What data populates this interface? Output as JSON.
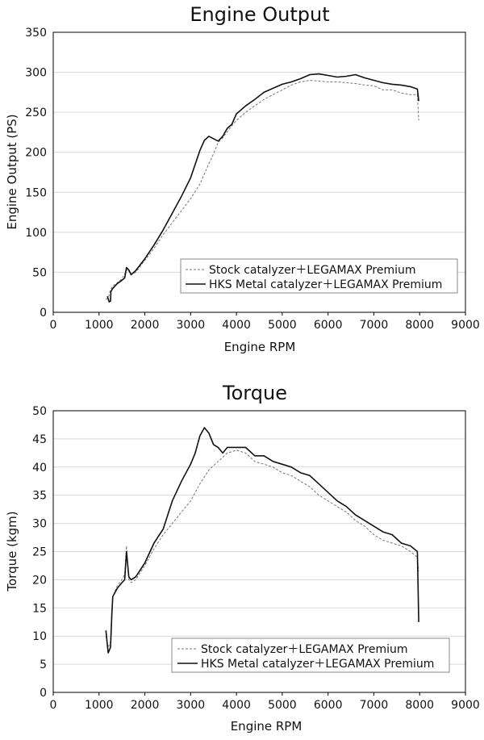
{
  "colors": {
    "line": "#111111",
    "dashed": "#777777",
    "grid": "#d9d9d9",
    "frame": "#000000"
  },
  "chart_data": [
    {
      "type": "line",
      "title": "Engine Output",
      "xlabel": "Engine RPM",
      "ylabel": "Engine Output (PS)",
      "xlim": [
        0,
        9000
      ],
      "ylim": [
        0,
        350
      ],
      "xticks": [
        0,
        1000,
        2000,
        3000,
        4000,
        5000,
        6000,
        7000,
        8000,
        9000
      ],
      "yticks": [
        0,
        50,
        100,
        150,
        200,
        250,
        300,
        350
      ],
      "grid": "horizontal",
      "legend_position": "bottom-right",
      "series": [
        {
          "name": "Stock catalyzer＋LEGAMAX Premium",
          "style": "dashed",
          "points": [
            [
              1150,
              16
            ],
            [
              1200,
              18
            ],
            [
              1250,
              28
            ],
            [
              1300,
              33
            ],
            [
              1400,
              37
            ],
            [
              1500,
              42
            ],
            [
              1580,
              50
            ],
            [
              1620,
              54
            ],
            [
              1700,
              47
            ],
            [
              1800,
              50
            ],
            [
              2000,
              65
            ],
            [
              2200,
              80
            ],
            [
              2400,
              97
            ],
            [
              2600,
              112
            ],
            [
              2800,
              127
            ],
            [
              3000,
              142
            ],
            [
              3200,
              160
            ],
            [
              3400,
              186
            ],
            [
              3500,
              198
            ],
            [
              3600,
              212
            ],
            [
              3700,
              218
            ],
            [
              3800,
              226
            ],
            [
              4000,
              240
            ],
            [
              4200,
              250
            ],
            [
              4400,
              258
            ],
            [
              4600,
              266
            ],
            [
              4800,
              272
            ],
            [
              5000,
              278
            ],
            [
              5200,
              284
            ],
            [
              5400,
              288
            ],
            [
              5600,
              290
            ],
            [
              5800,
              289
            ],
            [
              6000,
              288
            ],
            [
              6200,
              288
            ],
            [
              6400,
              287
            ],
            [
              6600,
              286
            ],
            [
              6800,
              284
            ],
            [
              7000,
              283
            ],
            [
              7200,
              278
            ],
            [
              7400,
              278
            ],
            [
              7600,
              274
            ],
            [
              7800,
              272
            ],
            [
              7950,
              272
            ],
            [
              7980,
              240
            ]
          ]
        },
        {
          "name": "HKS Metal catalyzer＋LEGAMAX Premium",
          "style": "solid",
          "points": [
            [
              1180,
              20
            ],
            [
              1200,
              17
            ],
            [
              1220,
              13
            ],
            [
              1250,
              14
            ],
            [
              1260,
              26
            ],
            [
              1300,
              30
            ],
            [
              1400,
              36
            ],
            [
              1500,
              40
            ],
            [
              1560,
              43
            ],
            [
              1600,
              56
            ],
            [
              1650,
              53
            ],
            [
              1700,
              47
            ],
            [
              1800,
              52
            ],
            [
              2000,
              67
            ],
            [
              2200,
              84
            ],
            [
              2400,
              103
            ],
            [
              2600,
              124
            ],
            [
              2800,
              145
            ],
            [
              3000,
              168
            ],
            [
              3100,
              185
            ],
            [
              3200,
              202
            ],
            [
              3300,
              215
            ],
            [
              3400,
              220
            ],
            [
              3500,
              217
            ],
            [
              3600,
              214
            ],
            [
              3700,
              220
            ],
            [
              3800,
              230
            ],
            [
              3900,
              235
            ],
            [
              4000,
              248
            ],
            [
              4200,
              258
            ],
            [
              4400,
              266
            ],
            [
              4600,
              275
            ],
            [
              4800,
              280
            ],
            [
              5000,
              285
            ],
            [
              5200,
              288
            ],
            [
              5400,
              292
            ],
            [
              5600,
              297
            ],
            [
              5800,
              298
            ],
            [
              6000,
              296
            ],
            [
              6200,
              294
            ],
            [
              6400,
              295
            ],
            [
              6600,
              297
            ],
            [
              6800,
              293
            ],
            [
              7000,
              290
            ],
            [
              7200,
              287
            ],
            [
              7400,
              285
            ],
            [
              7600,
              284
            ],
            [
              7800,
              282
            ],
            [
              7950,
              279
            ],
            [
              7980,
              264
            ]
          ]
        }
      ]
    },
    {
      "type": "line",
      "title": "Torque",
      "xlabel": "Engine RPM",
      "ylabel": "Torque (kgm)",
      "xlim": [
        0,
        9000
      ],
      "ylim": [
        0,
        50
      ],
      "xticks": [
        0,
        1000,
        2000,
        3000,
        4000,
        5000,
        6000,
        7000,
        8000,
        9000
      ],
      "yticks": [
        0,
        5,
        10,
        15,
        20,
        25,
        30,
        35,
        40,
        45,
        50
      ],
      "grid": "horizontal",
      "legend_position": "bottom-right",
      "series": [
        {
          "name": "Stock catalyzer＋LEGAMAX Premium",
          "style": "dashed",
          "points": [
            [
              1150,
              10
            ],
            [
              1200,
              8
            ],
            [
              1250,
              9
            ],
            [
              1280,
              15
            ],
            [
              1300,
              17
            ],
            [
              1400,
              19
            ],
            [
              1500,
              20
            ],
            [
              1560,
              21
            ],
            [
              1600,
              26
            ],
            [
              1650,
              20
            ],
            [
              1700,
              19.5
            ],
            [
              1800,
              20
            ],
            [
              2000,
              22.5
            ],
            [
              2200,
              25.5
            ],
            [
              2400,
              28
            ],
            [
              2600,
              30
            ],
            [
              2800,
              32
            ],
            [
              3000,
              34
            ],
            [
              3200,
              37
            ],
            [
              3400,
              39.5
            ],
            [
              3600,
              41
            ],
            [
              3800,
              42.5
            ],
            [
              4000,
              43
            ],
            [
              4200,
              42.5
            ],
            [
              4400,
              41
            ],
            [
              4600,
              40.5
            ],
            [
              4800,
              40
            ],
            [
              5000,
              39
            ],
            [
              5200,
              38.5
            ],
            [
              5400,
              37.5
            ],
            [
              5600,
              36.5
            ],
            [
              5800,
              35
            ],
            [
              6000,
              34
            ],
            [
              6200,
              33
            ],
            [
              6400,
              32
            ],
            [
              6600,
              30.5
            ],
            [
              6800,
              29.5
            ],
            [
              7000,
              28
            ],
            [
              7200,
              27
            ],
            [
              7400,
              26.5
            ],
            [
              7600,
              26
            ],
            [
              7800,
              25
            ],
            [
              7950,
              24
            ],
            [
              7980,
              21.5
            ]
          ]
        },
        {
          "name": "HKS Metal catalyzer＋LEGAMAX Premium",
          "style": "solid",
          "points": [
            [
              1150,
              11
            ],
            [
              1200,
              7
            ],
            [
              1250,
              8
            ],
            [
              1280,
              14
            ],
            [
              1300,
              17
            ],
            [
              1400,
              18.5
            ],
            [
              1500,
              19.5
            ],
            [
              1560,
              20
            ],
            [
              1600,
              25
            ],
            [
              1650,
              20.5
            ],
            [
              1700,
              20
            ],
            [
              1800,
              20.5
            ],
            [
              2000,
              23
            ],
            [
              2200,
              26.5
            ],
            [
              2400,
              29
            ],
            [
              2600,
              34
            ],
            [
              2800,
              37.5
            ],
            [
              3000,
              40.5
            ],
            [
              3100,
              42.5
            ],
            [
              3200,
              45.5
            ],
            [
              3300,
              47
            ],
            [
              3400,
              46
            ],
            [
              3500,
              44
            ],
            [
              3600,
              43.5
            ],
            [
              3700,
              42.5
            ],
            [
              3800,
              43.5
            ],
            [
              4000,
              43.5
            ],
            [
              4200,
              43.5
            ],
            [
              4400,
              42
            ],
            [
              4600,
              42
            ],
            [
              4800,
              41
            ],
            [
              5000,
              40.5
            ],
            [
              5200,
              40
            ],
            [
              5400,
              39
            ],
            [
              5600,
              38.5
            ],
            [
              5800,
              37
            ],
            [
              6000,
              35.5
            ],
            [
              6200,
              34
            ],
            [
              6400,
              33
            ],
            [
              6600,
              31.5
            ],
            [
              6800,
              30.5
            ],
            [
              7000,
              29.5
            ],
            [
              7200,
              28.5
            ],
            [
              7400,
              28
            ],
            [
              7600,
              26.5
            ],
            [
              7800,
              26
            ],
            [
              7950,
              25
            ],
            [
              7980,
              12.5
            ]
          ]
        }
      ]
    }
  ]
}
